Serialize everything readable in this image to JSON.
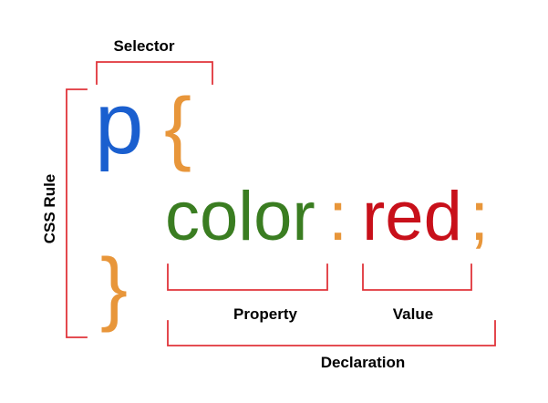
{
  "labels": {
    "selector": "Selector",
    "css_rule": "CSS Rule",
    "property": "Property",
    "value": "Value",
    "declaration": "Declaration"
  },
  "code": {
    "selector": "p",
    "open_brace": "{",
    "property": "color",
    "colon": ":",
    "value": "red",
    "semicolon": ";",
    "close_brace": "}"
  },
  "colors": {
    "selector": "#1a5fcf",
    "brace": "#e8963a",
    "property": "#3a7d21",
    "value": "#c8101a",
    "bracket": "#e0343a",
    "label": "#000000"
  }
}
